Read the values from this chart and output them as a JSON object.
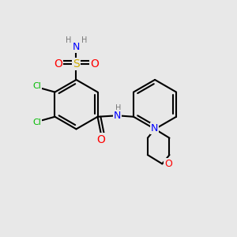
{
  "bg_color": "#e8e8e8",
  "bond_color": "#000000",
  "bond_width": 1.5,
  "atom_colors": {
    "C": "#000000",
    "H": "#777777",
    "N": "#0000ff",
    "O": "#ff0000",
    "S": "#ccaa00",
    "Cl": "#00bb00"
  },
  "font_size": 8,
  "fig_size": [
    3.0,
    3.0
  ],
  "dpi": 100,
  "xlim": [
    0,
    10
  ],
  "ylim": [
    0,
    10
  ]
}
